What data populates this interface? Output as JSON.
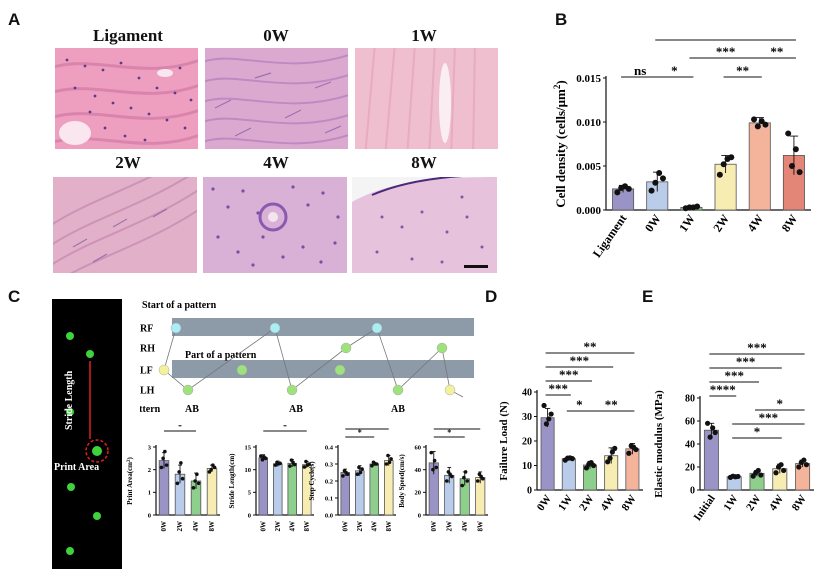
{
  "panels": {
    "A": "A",
    "B": "B",
    "C": "C",
    "D": "D",
    "E": "E"
  },
  "histology": {
    "titles": [
      "Ligament",
      "0W",
      "1W",
      "2W",
      "4W",
      "8W"
    ],
    "colors": {
      "pink": "#e89bb6",
      "pale": "#efc3d0",
      "purple": "#c98fc8",
      "nuclei": "#5b3b8c"
    }
  },
  "gait": {
    "start_label": "Start of a pattern",
    "part_label": "Part of a pattern",
    "rows": [
      "RF",
      "RH",
      "LF",
      "LH"
    ],
    "pattern_label": "Pattern",
    "patterns": [
      "AB",
      "AB",
      "AB"
    ],
    "stride_label": "Stride Length",
    "print_label": "Print Area",
    "colors": {
      "cyan": "#a8eef2",
      "green": "#9de27c",
      "yellow": "#f3f29a",
      "band": "#8d9aa8"
    }
  },
  "chart_data": [
    {
      "id": "B",
      "type": "bar",
      "categories": [
        "Ligament",
        "0W",
        "1W",
        "2W",
        "4W",
        "8W"
      ],
      "values": [
        0.0024,
        0.0032,
        0.0003,
        0.0052,
        0.0099,
        0.0062
      ],
      "errors": [
        0.0004,
        0.0011,
        0.0001,
        0.001,
        0.0006,
        0.0022
      ],
      "points": [
        [
          0.002,
          0.0025,
          0.0027,
          0.0024
        ],
        [
          0.0022,
          0.0031,
          0.0042,
          0.0036
        ],
        [
          0.0002,
          0.0003,
          0.0003,
          0.0004
        ],
        [
          0.004,
          0.0052,
          0.0058,
          0.006
        ],
        [
          0.0103,
          0.0095,
          0.0101,
          0.0097
        ],
        [
          0.0087,
          0.005,
          0.0069,
          0.0043
        ]
      ],
      "colors": [
        "#9a93c6",
        "#b9ccea",
        "#8fcf8e",
        "#f7ecb2",
        "#f4b49c",
        "#e38678"
      ],
      "ylabel": "Cell density (cells/μm",
      "ylabel_sup": "2",
      "ylabel_end": ")",
      "yticks": [
        "0.000",
        "0.005",
        "0.010",
        "0.015"
      ],
      "ylim": [
        0,
        0.015
      ],
      "significance": [
        {
          "from": 1,
          "to": 5,
          "label": "**"
        },
        {
          "from": 2,
          "to": 4,
          "label": "***"
        },
        {
          "from": 4,
          "to": 5,
          "label": "**"
        },
        {
          "from": 0,
          "to": 1,
          "label": "ns"
        },
        {
          "from": 1,
          "to": 2,
          "label": "*"
        },
        {
          "from": 3,
          "to": 4,
          "label": "**"
        }
      ]
    },
    {
      "id": "C1",
      "type": "bar",
      "categories": [
        "0W",
        "2W",
        "4W",
        "8W"
      ],
      "values": [
        2.4,
        1.8,
        1.5,
        2.05
      ],
      "errors": [
        0.35,
        0.4,
        0.35,
        0.15
      ],
      "points": [
        [
          2.1,
          2.5,
          2.8,
          2.2
        ],
        [
          1.4,
          1.9,
          2.3,
          1.6
        ],
        [
          1.2,
          1.5,
          1.8,
          1.4
        ],
        [
          1.9,
          2.0,
          2.2,
          2.1
        ]
      ],
      "colors": [
        "#9a93c6",
        "#b9ccea",
        "#8fcf8e",
        "#f7ecb2"
      ],
      "ylabel": "Print Area(cm",
      "ylabel_sup": "2",
      "ylabel_end": ")",
      "yticks": [
        "0",
        "1",
        "2",
        "3"
      ],
      "ylim": [
        0,
        3
      ],
      "significance": [
        {
          "from": 0,
          "to": 2,
          "label": "*"
        }
      ]
    },
    {
      "id": "C2",
      "type": "bar",
      "categories": [
        "0W",
        "2W",
        "4W",
        "8W"
      ],
      "values": [
        12.6,
        11.3,
        11.4,
        11.1
      ],
      "errors": [
        0.7,
        0.6,
        0.8,
        0.7
      ],
      "points": [
        [
          13.0,
          12.2,
          12.8,
          12.5
        ],
        [
          11.0,
          11.6,
          11.3,
          11.4
        ],
        [
          10.8,
          12.1,
          11.6,
          11.1
        ],
        [
          10.6,
          11.8,
          11.0,
          11.2
        ]
      ],
      "colors": [
        "#9a93c6",
        "#b9ccea",
        "#8fcf8e",
        "#f7ecb2"
      ],
      "ylabel": "Stride Length(cm)",
      "ylabel_sup": "",
      "ylabel_end": "",
      "yticks": [
        "0",
        "5",
        "10",
        "15"
      ],
      "ylim": [
        0,
        15
      ],
      "significance": [
        {
          "from": 0,
          "to": 3,
          "label": "*"
        }
      ]
    },
    {
      "id": "C3",
      "type": "bar",
      "categories": [
        "0W",
        "2W",
        "4W",
        "8W"
      ],
      "values": [
        0.25,
        0.26,
        0.3,
        0.32
      ],
      "errors": [
        0.02,
        0.03,
        0.01,
        0.03
      ],
      "points": [
        [
          0.23,
          0.26,
          0.25,
          0.24
        ],
        [
          0.24,
          0.28,
          0.25,
          0.27
        ],
        [
          0.29,
          0.31,
          0.3,
          0.3
        ],
        [
          0.3,
          0.35,
          0.31,
          0.33
        ]
      ],
      "colors": [
        "#9a93c6",
        "#b9ccea",
        "#8fcf8e",
        "#f7ecb2"
      ],
      "ylabel": "Step Cycle(s)",
      "ylabel_sup": "",
      "ylabel_end": "",
      "yticks": [
        "0.0",
        "0.1",
        "0.2",
        "0.3",
        "0.4"
      ],
      "ylim": [
        0,
        0.4
      ],
      "significance": [
        {
          "from": 0,
          "to": 3,
          "label": "**"
        },
        {
          "from": 0,
          "to": 2,
          "label": "*"
        }
      ]
    },
    {
      "id": "C4",
      "type": "bar",
      "categories": [
        "0W",
        "2W",
        "4W",
        "8W"
      ],
      "values": [
        46,
        35,
        32,
        33
      ],
      "errors": [
        10,
        7,
        6,
        5
      ],
      "points": [
        [
          55,
          40,
          48,
          42
        ],
        [
          30,
          38,
          36,
          34
        ],
        [
          26,
          33,
          38,
          30
        ],
        [
          30,
          36,
          34,
          32
        ]
      ],
      "colors": [
        "#9a93c6",
        "#b9ccea",
        "#8fcf8e",
        "#f7ecb2"
      ],
      "ylabel": "Body Speed(cm/s)",
      "ylabel_sup": "",
      "ylabel_end": "",
      "yticks": [
        "0",
        "20",
        "40",
        "60"
      ],
      "ylim": [
        0,
        60
      ],
      "significance": [
        {
          "from": 0,
          "to": 3,
          "label": "*"
        },
        {
          "from": 0,
          "to": 2,
          "label": "*"
        }
      ]
    },
    {
      "id": "D",
      "type": "bar",
      "categories": [
        "0W",
        "1W",
        "2W",
        "4W",
        "8W"
      ],
      "values": [
        29.5,
        12.8,
        10.2,
        14.0,
        16.8
      ],
      "errors": [
        3.8,
        0.8,
        1.5,
        3.2,
        2.2
      ],
      "points": [
        [
          34.5,
          27.0,
          29.0,
          31.0
        ],
        [
          12.2,
          13.0,
          13.1,
          12.8
        ],
        [
          9.0,
          10.5,
          11.2,
          10.0
        ],
        [
          11.5,
          13.0,
          15.5,
          17.0
        ],
        [
          15.0,
          18.0,
          17.5,
          16.5
        ]
      ],
      "colors": [
        "#9a93c6",
        "#b9ccea",
        "#8fcf8e",
        "#f7ecb2",
        "#f4b49c"
      ],
      "ylabel": "Failure Load (N)",
      "ylabel_sup": "",
      "ylabel_end": "",
      "yticks": [
        "0",
        "10",
        "20",
        "30",
        "40"
      ],
      "ylim": [
        0,
        40
      ],
      "significance": [
        {
          "from": 0,
          "to": 4,
          "label": "**"
        },
        {
          "from": 0,
          "to": 3,
          "label": "***"
        },
        {
          "from": 0,
          "to": 2,
          "label": "***"
        },
        {
          "from": 0,
          "to": 1,
          "label": "***"
        },
        {
          "from": 1,
          "to": 2,
          "label": "*"
        },
        {
          "from": 2,
          "to": 4,
          "label": "**"
        }
      ]
    },
    {
      "id": "E",
      "type": "bar",
      "categories": [
        "Initial",
        "1W",
        "2W",
        "4W",
        "8W"
      ],
      "values": [
        52,
        11.5,
        14.5,
        18.5,
        23
      ],
      "errors": [
        6,
        1,
        2.5,
        4,
        3
      ],
      "points": [
        [
          58,
          46,
          54,
          50
        ],
        [
          11,
          12,
          11.5,
          11.8
        ],
        [
          12,
          15,
          17,
          13
        ],
        [
          15,
          20,
          22,
          17
        ],
        [
          20,
          24,
          26,
          22
        ]
      ],
      "colors": [
        "#9a93c6",
        "#b9ccea",
        "#8fcf8e",
        "#f7ecb2",
        "#f4b49c"
      ],
      "ylabel": "Elastic modulus (MPa)",
      "ylabel_sup": "",
      "ylabel_end": "",
      "yticks": [
        "0",
        "20",
        "40",
        "60",
        "80"
      ],
      "ylim": [
        0,
        80
      ],
      "significance": [
        {
          "from": 0,
          "to": 4,
          "label": "***"
        },
        {
          "from": 0,
          "to": 3,
          "label": "***"
        },
        {
          "from": 0,
          "to": 2,
          "label": "***"
        },
        {
          "from": 0,
          "to": 1,
          "label": "****"
        },
        {
          "from": 2,
          "to": 4,
          "label": "*"
        },
        {
          "from": 1,
          "to": 4,
          "label": "***"
        },
        {
          "from": 1,
          "to": 3,
          "label": "*"
        }
      ]
    }
  ]
}
